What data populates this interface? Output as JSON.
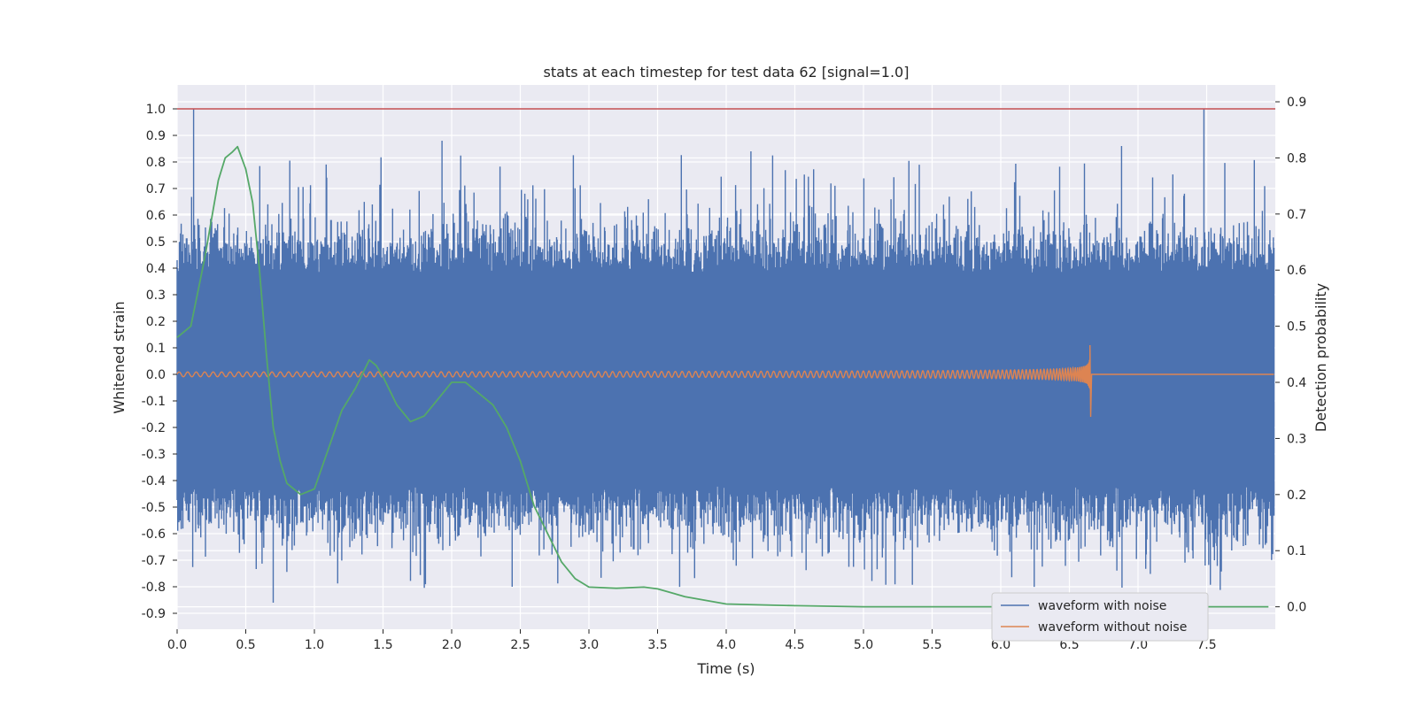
{
  "chart_data": {
    "type": "line",
    "title": "stats at each timestep for test data 62 [signal=1.0]",
    "xlabel": "Time (s)",
    "ylabel": "Whitened strain",
    "y2label": "Detection probability",
    "xlim": [
      0.0,
      8.0
    ],
    "ylim": [
      -0.96,
      1.09
    ],
    "y2lim": [
      -0.04,
      0.93
    ],
    "x_ticks": [
      "0.0",
      "0.5",
      "1.0",
      "1.5",
      "2.0",
      "2.5",
      "3.0",
      "3.5",
      "4.0",
      "4.5",
      "5.0",
      "5.5",
      "6.0",
      "6.5",
      "7.0",
      "7.5"
    ],
    "y_ticks": [
      "1.0",
      "0.9",
      "0.8",
      "0.7",
      "0.6",
      "0.5",
      "0.4",
      "0.3",
      "0.2",
      "0.1",
      "0.0",
      "-0.1",
      "-0.2",
      "-0.3",
      "-0.4",
      "-0.5",
      "-0.6",
      "-0.7",
      "-0.8",
      "-0.9"
    ],
    "y2_ticks": [
      "0.9",
      "0.8",
      "0.7",
      "0.6",
      "0.5",
      "0.4",
      "0.3",
      "0.2",
      "0.1",
      "0.0"
    ],
    "grid": true,
    "legend_position": "lower-right",
    "threshold": {
      "axis": "y",
      "value": 1.0,
      "color": "#c44e52"
    },
    "series": [
      {
        "name": "waveform with noise",
        "axis": "left",
        "color": "#4c72b0",
        "kind": "noisy-strain",
        "band": [
          -0.42,
          0.38
        ],
        "notable_peaks": [
          [
            0.12,
            1.0
          ],
          [
            7.48,
            1.0
          ],
          [
            1.93,
            0.88
          ],
          [
            4.18,
            0.84
          ],
          [
            6.88,
            0.86
          ],
          [
            0.7,
            -0.86
          ]
        ]
      },
      {
        "name": "waveform without noise",
        "axis": "left",
        "color": "#dd8452",
        "kind": "chirp",
        "merger_time": 6.65,
        "peak_amplitude": [
          -0.16,
          0.11
        ]
      },
      {
        "name": "",
        "axis": "right",
        "color": "#55a868",
        "kind": "line",
        "x": [
          0.0,
          0.1,
          0.2,
          0.3,
          0.35,
          0.4,
          0.44,
          0.5,
          0.55,
          0.6,
          0.65,
          0.7,
          0.75,
          0.8,
          0.9,
          1.0,
          1.1,
          1.2,
          1.3,
          1.4,
          1.45,
          1.5,
          1.6,
          1.7,
          1.8,
          1.9,
          2.0,
          2.1,
          2.2,
          2.3,
          2.4,
          2.5,
          2.6,
          2.7,
          2.8,
          2.9,
          3.0,
          3.2,
          3.4,
          3.5,
          3.7,
          4.0,
          4.5,
          5.0,
          5.5,
          6.0,
          6.5,
          7.0,
          7.5,
          7.95
        ],
        "y": [
          0.48,
          0.5,
          0.62,
          0.76,
          0.8,
          0.81,
          0.82,
          0.78,
          0.72,
          0.6,
          0.45,
          0.32,
          0.26,
          0.22,
          0.2,
          0.21,
          0.28,
          0.35,
          0.39,
          0.44,
          0.43,
          0.41,
          0.36,
          0.33,
          0.34,
          0.37,
          0.4,
          0.4,
          0.38,
          0.36,
          0.32,
          0.26,
          0.18,
          0.13,
          0.08,
          0.05,
          0.035,
          0.033,
          0.035,
          0.032,
          0.018,
          0.005,
          0.002,
          0.0,
          0.0,
          0.0,
          0.0,
          0.0,
          0.0,
          0.0
        ]
      }
    ]
  }
}
